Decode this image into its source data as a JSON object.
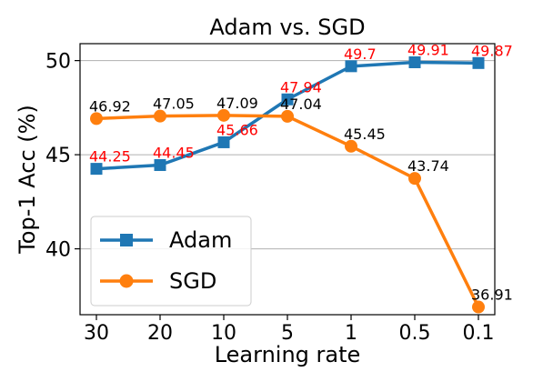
{
  "chart_data": {
    "type": "line",
    "title": "Adam vs. SGD",
    "xlabel": "Learning rate",
    "ylabel": "Top-1 Acc (%)",
    "categories": [
      "30",
      "20",
      "10",
      "5",
      "1",
      "0.5",
      "0.1"
    ],
    "ylim": [
      36.5,
      50.9
    ],
    "yticks": [
      40,
      45,
      50
    ],
    "grid": "horizontal",
    "legend_position": "lower-left",
    "series": [
      {
        "name": "Adam",
        "marker": "square",
        "color": "#1f77b4",
        "label_color": "#ff0000",
        "values": [
          44.25,
          44.45,
          45.66,
          47.94,
          49.7,
          49.91,
          49.87
        ],
        "value_labels": [
          "44.25",
          "44.45",
          "45.66",
          "47.94",
          "49.7",
          "49.91",
          "49.87"
        ]
      },
      {
        "name": "SGD",
        "marker": "circle",
        "color": "#ff7f0e",
        "label_color": "#000000",
        "values": [
          46.92,
          47.05,
          47.09,
          47.04,
          45.45,
          43.74,
          36.91
        ],
        "value_labels": [
          "46.92",
          "47.05",
          "47.09",
          "47.04",
          "45.45",
          "43.74",
          "36.91"
        ]
      }
    ]
  }
}
